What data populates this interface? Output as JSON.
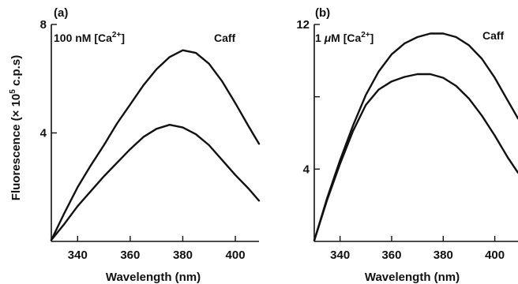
{
  "y_axis_title_parts": [
    "Fluorescence (",
    "×",
    " 10",
    "5",
    " c.p.s)"
  ],
  "chart_data": [
    {
      "type": "line",
      "panel_label": "(a)",
      "concentration_prefix": "100 nM [Ca",
      "concentration_superscript": "2+",
      "concentration_suffix": "]",
      "curve_label": "Caff",
      "xlabel": "Wavelength (nm)",
      "xlim": [
        330,
        409
      ],
      "ylim": [
        0,
        8
      ],
      "x_ticks": [
        340,
        360,
        380,
        400
      ],
      "y_ticks": [
        4,
        8
      ],
      "y_tick_labels": [
        "4",
        "8"
      ],
      "series": [
        {
          "x": [
            330,
            335,
            340,
            345,
            350,
            355,
            360,
            365,
            370,
            375,
            380,
            385,
            390,
            395,
            400,
            405,
            409
          ],
          "y": [
            0.05,
            1.05,
            2.0,
            2.8,
            3.55,
            4.35,
            5.05,
            5.75,
            6.35,
            6.8,
            7.05,
            6.95,
            6.55,
            5.9,
            5.1,
            4.25,
            3.6
          ]
        },
        {
          "x": [
            330,
            335,
            340,
            345,
            350,
            355,
            360,
            365,
            370,
            375,
            380,
            385,
            390,
            395,
            400,
            405,
            409
          ],
          "y": [
            0.05,
            0.65,
            1.3,
            1.85,
            2.4,
            2.9,
            3.4,
            3.85,
            4.15,
            4.3,
            4.2,
            3.95,
            3.55,
            3.0,
            2.45,
            1.95,
            1.5
          ]
        }
      ]
    },
    {
      "type": "line",
      "panel_label": "(b)",
      "concentration_prefix": "1 ",
      "concentration_mu": "μ",
      "concentration_prefix2": "M [Ca",
      "concentration_superscript": "2+",
      "concentration_suffix": "]",
      "curve_label": "Caff",
      "xlabel": "Wavelength (nm)",
      "xlim": [
        330,
        409
      ],
      "ylim": [
        0,
        12
      ],
      "x_ticks": [
        340,
        360,
        380,
        400
      ],
      "y_ticks": [
        4,
        8,
        12
      ],
      "y_tick_labels": [
        "4",
        "",
        "12"
      ],
      "series": [
        {
          "x": [
            330,
            335,
            340,
            345,
            350,
            355,
            360,
            365,
            370,
            375,
            380,
            385,
            390,
            395,
            400,
            405,
            409
          ],
          "y": [
            0.05,
            2.4,
            4.5,
            6.4,
            8.1,
            9.4,
            10.35,
            10.95,
            11.3,
            11.5,
            11.5,
            11.3,
            10.85,
            10.1,
            9.05,
            7.8,
            6.8
          ]
        },
        {
          "x": [
            330,
            335,
            340,
            345,
            350,
            355,
            360,
            365,
            370,
            375,
            380,
            385,
            390,
            395,
            400,
            405,
            409
          ],
          "y": [
            0.05,
            2.3,
            4.3,
            6.1,
            7.55,
            8.4,
            8.85,
            9.1,
            9.25,
            9.25,
            9.05,
            8.6,
            7.9,
            6.95,
            5.85,
            4.65,
            3.8
          ]
        }
      ]
    }
  ]
}
